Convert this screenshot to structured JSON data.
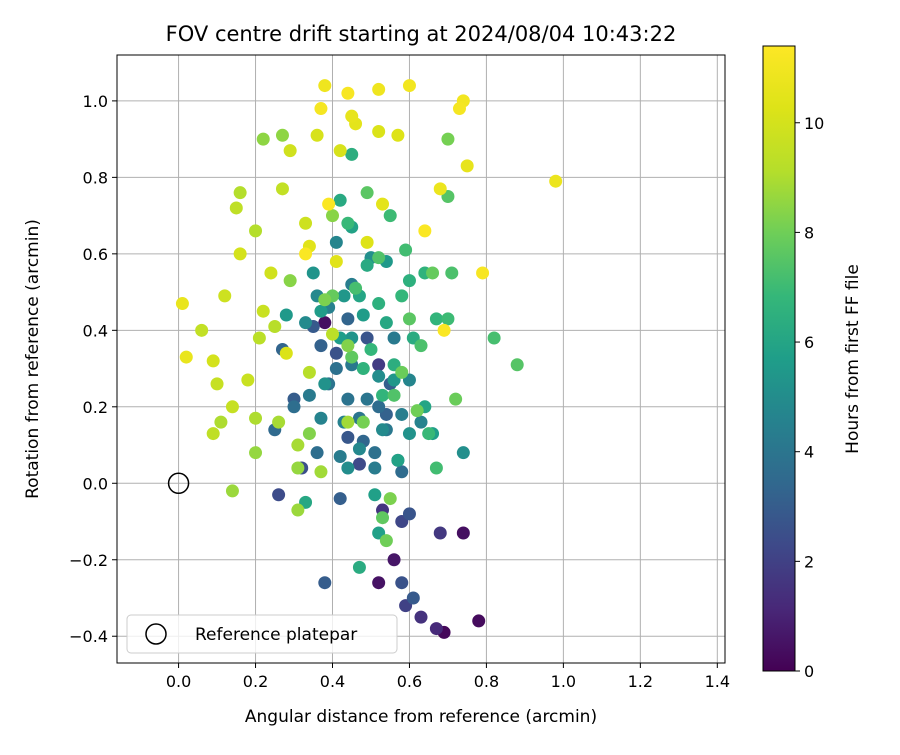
{
  "chart_data": {
    "type": "scatter",
    "title": "FOV centre drift starting at 2024/08/04 10:43:22",
    "xlabel": "Angular distance from reference (arcmin)",
    "ylabel": "Rotation from reference (arcmin)",
    "xlim": [
      -0.16,
      1.42
    ],
    "ylim": [
      -0.47,
      1.12
    ],
    "x_ticks": [
      "0.0",
      "0.2",
      "0.4",
      "0.6",
      "0.8",
      "1.0",
      "1.2",
      "1.4"
    ],
    "y_ticks": [
      "−0.4",
      "−0.2",
      "0.0",
      "0.2",
      "0.4",
      "0.6",
      "0.8",
      "1.0"
    ],
    "grid": true,
    "colormap": "viridis",
    "colorbar": {
      "label": "Hours from first FF file",
      "range": [
        0,
        11.4
      ],
      "ticks": [
        "0",
        "2",
        "4",
        "6",
        "8",
        "10"
      ]
    },
    "legend": {
      "placement": "lower left",
      "entries": [
        "Reference platepar"
      ]
    },
    "reference_point": {
      "x": 0.0,
      "y": 0.0
    },
    "points": [
      {
        "x": 0.69,
        "y": -0.39,
        "h": 0.2
      },
      {
        "x": 0.78,
        "y": -0.36,
        "h": 0.3
      },
      {
        "x": 0.74,
        "y": -0.13,
        "h": 0.4
      },
      {
        "x": 0.38,
        "y": 0.42,
        "h": 0.4
      },
      {
        "x": 0.52,
        "y": -0.26,
        "h": 0.5
      },
      {
        "x": 0.56,
        "y": -0.2,
        "h": 0.6
      },
      {
        "x": 0.67,
        "y": -0.38,
        "h": 1.2
      },
      {
        "x": 0.63,
        "y": -0.35,
        "h": 1.5
      },
      {
        "x": 0.53,
        "y": -0.07,
        "h": 1.6
      },
      {
        "x": 0.68,
        "y": -0.13,
        "h": 1.7
      },
      {
        "x": 0.52,
        "y": 0.31,
        "h": 1.8
      },
      {
        "x": 0.59,
        "y": -0.32,
        "h": 2.0
      },
      {
        "x": 0.58,
        "y": -0.1,
        "h": 2.2
      },
      {
        "x": 0.47,
        "y": 0.05,
        "h": 2.3
      },
      {
        "x": 0.26,
        "y": -0.03,
        "h": 2.4
      },
      {
        "x": 0.32,
        "y": 0.04,
        "h": 2.5
      },
      {
        "x": 0.58,
        "y": -0.26,
        "h": 2.6
      },
      {
        "x": 0.41,
        "y": 0.34,
        "h": 2.6
      },
      {
        "x": 0.49,
        "y": 0.38,
        "h": 2.7
      },
      {
        "x": 0.6,
        "y": -0.08,
        "h": 2.7
      },
      {
        "x": 0.44,
        "y": 0.12,
        "h": 2.8
      },
      {
        "x": 0.61,
        "y": -0.3,
        "h": 2.9
      },
      {
        "x": 0.35,
        "y": 0.41,
        "h": 2.9
      },
      {
        "x": 0.38,
        "y": -0.26,
        "h": 3.0
      },
      {
        "x": 0.3,
        "y": 0.22,
        "h": 3.0
      },
      {
        "x": 0.42,
        "y": -0.04,
        "h": 3.1
      },
      {
        "x": 0.55,
        "y": 0.26,
        "h": 3.1
      },
      {
        "x": 0.37,
        "y": 0.36,
        "h": 3.2
      },
      {
        "x": 0.54,
        "y": 0.18,
        "h": 3.2
      },
      {
        "x": 0.44,
        "y": 0.43,
        "h": 3.3
      },
      {
        "x": 0.27,
        "y": 0.35,
        "h": 3.3
      },
      {
        "x": 0.48,
        "y": 0.11,
        "h": 3.4
      },
      {
        "x": 0.25,
        "y": 0.14,
        "h": 3.5
      },
      {
        "x": 0.57,
        "y": 0.06,
        "h": 3.5
      },
      {
        "x": 0.52,
        "y": 0.2,
        "h": 3.6
      },
      {
        "x": 0.58,
        "y": 0.03,
        "h": 3.6
      },
      {
        "x": 0.3,
        "y": 0.2,
        "h": 3.7
      },
      {
        "x": 0.36,
        "y": 0.08,
        "h": 3.7
      },
      {
        "x": 0.41,
        "y": 0.3,
        "h": 3.8
      },
      {
        "x": 0.51,
        "y": 0.08,
        "h": 3.8
      },
      {
        "x": 0.44,
        "y": 0.22,
        "h": 3.9
      },
      {
        "x": 0.39,
        "y": 0.26,
        "h": 3.9
      },
      {
        "x": 0.47,
        "y": 0.17,
        "h": 4.0
      },
      {
        "x": 0.49,
        "y": 0.22,
        "h": 4.0
      },
      {
        "x": 0.54,
        "y": 0.14,
        "h": 4.1
      },
      {
        "x": 0.45,
        "y": 0.31,
        "h": 4.1
      },
      {
        "x": 0.56,
        "y": 0.38,
        "h": 4.2
      },
      {
        "x": 0.34,
        "y": 0.23,
        "h": 4.2
      },
      {
        "x": 0.42,
        "y": 0.07,
        "h": 4.3
      },
      {
        "x": 0.51,
        "y": 0.04,
        "h": 4.3
      },
      {
        "x": 0.58,
        "y": 0.18,
        "h": 4.4
      },
      {
        "x": 0.45,
        "y": 0.52,
        "h": 4.4
      },
      {
        "x": 0.39,
        "y": 0.46,
        "h": 4.5
      },
      {
        "x": 0.43,
        "y": 0.16,
        "h": 4.5
      },
      {
        "x": 0.63,
        "y": 0.16,
        "h": 4.6
      },
      {
        "x": 0.37,
        "y": 0.17,
        "h": 4.6
      },
      {
        "x": 0.6,
        "y": 0.27,
        "h": 4.7
      },
      {
        "x": 0.41,
        "y": 0.63,
        "h": 4.7
      },
      {
        "x": 0.47,
        "y": 0.09,
        "h": 4.8
      },
      {
        "x": 0.36,
        "y": 0.49,
        "h": 4.8
      },
      {
        "x": 0.53,
        "y": 0.14,
        "h": 4.9
      },
      {
        "x": 0.33,
        "y": 0.42,
        "h": 4.9
      },
      {
        "x": 0.44,
        "y": 0.04,
        "h": 5.0
      },
      {
        "x": 0.52,
        "y": 0.28,
        "h": 5.0
      },
      {
        "x": 0.74,
        "y": 0.08,
        "h": 5.1
      },
      {
        "x": 0.5,
        "y": 0.59,
        "h": 5.1
      },
      {
        "x": 0.38,
        "y": 0.26,
        "h": 5.2
      },
      {
        "x": 0.6,
        "y": 0.13,
        "h": 5.2
      },
      {
        "x": 0.35,
        "y": 0.55,
        "h": 5.3
      },
      {
        "x": 0.45,
        "y": 0.38,
        "h": 5.3
      },
      {
        "x": 0.56,
        "y": 0.27,
        "h": 5.4
      },
      {
        "x": 0.43,
        "y": 0.49,
        "h": 5.4
      },
      {
        "x": 0.28,
        "y": 0.44,
        "h": 5.5
      },
      {
        "x": 0.54,
        "y": 0.58,
        "h": 5.5
      },
      {
        "x": 0.37,
        "y": 0.45,
        "h": 5.6
      },
      {
        "x": 0.48,
        "y": 0.44,
        "h": 5.6
      },
      {
        "x": 0.66,
        "y": 0.13,
        "h": 5.7
      },
      {
        "x": 0.42,
        "y": 0.38,
        "h": 5.7
      },
      {
        "x": 0.51,
        "y": -0.03,
        "h": 5.8
      },
      {
        "x": 0.52,
        "y": -0.13,
        "h": 5.8
      },
      {
        "x": 0.57,
        "y": 0.06,
        "h": 5.9
      },
      {
        "x": 0.45,
        "y": 0.67,
        "h": 5.9
      },
      {
        "x": 0.47,
        "y": 0.49,
        "h": 6.0
      },
      {
        "x": 0.64,
        "y": 0.2,
        "h": 6.0
      },
      {
        "x": 0.54,
        "y": 0.42,
        "h": 6.1
      },
      {
        "x": 0.33,
        "y": -0.05,
        "h": 6.1
      },
      {
        "x": 0.49,
        "y": 0.57,
        "h": 6.2
      },
      {
        "x": 0.42,
        "y": 0.74,
        "h": 6.2
      },
      {
        "x": 0.61,
        "y": 0.38,
        "h": 6.3
      },
      {
        "x": 0.47,
        "y": -0.22,
        "h": 6.3
      },
      {
        "x": 0.56,
        "y": 0.31,
        "h": 6.4
      },
      {
        "x": 0.45,
        "y": 0.86,
        "h": 6.4
      },
      {
        "x": 0.52,
        "y": 0.47,
        "h": 6.5
      },
      {
        "x": 0.6,
        "y": 0.53,
        "h": 6.5
      },
      {
        "x": 0.48,
        "y": 0.3,
        "h": 6.6
      },
      {
        "x": 0.64,
        "y": 0.55,
        "h": 6.6
      },
      {
        "x": 0.53,
        "y": 0.23,
        "h": 6.7
      },
      {
        "x": 0.67,
        "y": 0.43,
        "h": 6.7
      },
      {
        "x": 0.5,
        "y": 0.35,
        "h": 6.8
      },
      {
        "x": 0.58,
        "y": 0.49,
        "h": 6.8
      },
      {
        "x": 0.65,
        "y": 0.13,
        "h": 6.9
      },
      {
        "x": 0.44,
        "y": 0.68,
        "h": 6.9
      },
      {
        "x": 0.55,
        "y": 0.7,
        "h": 7.0
      },
      {
        "x": 0.7,
        "y": 0.43,
        "h": 7.0
      },
      {
        "x": 0.59,
        "y": 0.61,
        "h": 7.1
      },
      {
        "x": 0.67,
        "y": 0.04,
        "h": 7.1
      },
      {
        "x": 0.82,
        "y": 0.38,
        "h": 7.2
      },
      {
        "x": 0.46,
        "y": 0.51,
        "h": 7.2
      },
      {
        "x": 0.63,
        "y": 0.36,
        "h": 7.3
      },
      {
        "x": 0.71,
        "y": 0.55,
        "h": 7.3
      },
      {
        "x": 0.52,
        "y": 0.59,
        "h": 7.4
      },
      {
        "x": 0.56,
        "y": 0.23,
        "h": 7.4
      },
      {
        "x": 0.88,
        "y": 0.31,
        "h": 7.5
      },
      {
        "x": 0.7,
        "y": 0.75,
        "h": 7.5
      },
      {
        "x": 0.6,
        "y": 0.43,
        "h": 7.6
      },
      {
        "x": 0.49,
        "y": 0.76,
        "h": 7.6
      },
      {
        "x": 0.53,
        "y": -0.09,
        "h": 7.7
      },
      {
        "x": 0.45,
        "y": 0.33,
        "h": 7.7
      },
      {
        "x": 0.66,
        "y": 0.55,
        "h": 7.8
      },
      {
        "x": 0.4,
        "y": 0.49,
        "h": 7.8
      },
      {
        "x": 0.58,
        "y": 0.29,
        "h": 7.9
      },
      {
        "x": 0.72,
        "y": 0.22,
        "h": 7.9
      },
      {
        "x": 0.54,
        "y": -0.15,
        "h": 8.0
      },
      {
        "x": 0.62,
        "y": 0.19,
        "h": 8.0
      },
      {
        "x": 0.7,
        "y": 0.9,
        "h": 8.1
      },
      {
        "x": 0.48,
        "y": 0.16,
        "h": 8.1
      },
      {
        "x": 0.38,
        "y": 0.48,
        "h": 8.2
      },
      {
        "x": 0.55,
        "y": -0.04,
        "h": 8.2
      },
      {
        "x": 0.44,
        "y": 0.36,
        "h": 8.3
      },
      {
        "x": 0.34,
        "y": 0.13,
        "h": 8.3
      },
      {
        "x": 0.29,
        "y": 0.53,
        "h": 8.4
      },
      {
        "x": 0.4,
        "y": 0.7,
        "h": 8.4
      },
      {
        "x": 0.22,
        "y": 0.9,
        "h": 8.5
      },
      {
        "x": 0.27,
        "y": 0.91,
        "h": 8.5
      },
      {
        "x": 0.31,
        "y": 0.04,
        "h": 8.6
      },
      {
        "x": 0.2,
        "y": 0.08,
        "h": 8.6
      },
      {
        "x": 0.14,
        "y": -0.02,
        "h": 8.7
      },
      {
        "x": 0.31,
        "y": -0.07,
        "h": 8.7
      },
      {
        "x": 0.37,
        "y": 0.03,
        "h": 8.8
      },
      {
        "x": 0.44,
        "y": 0.16,
        "h": 8.8
      },
      {
        "x": 0.31,
        "y": 0.1,
        "h": 8.9
      },
      {
        "x": 0.26,
        "y": 0.16,
        "h": 8.9
      },
      {
        "x": 0.2,
        "y": 0.17,
        "h": 9.0
      },
      {
        "x": 0.11,
        "y": 0.16,
        "h": 9.0
      },
      {
        "x": 0.16,
        "y": 0.76,
        "h": 9.1
      },
      {
        "x": 0.2,
        "y": 0.66,
        "h": 9.1
      },
      {
        "x": 0.25,
        "y": 0.41,
        "h": 9.2
      },
      {
        "x": 0.34,
        "y": 0.29,
        "h": 9.2
      },
      {
        "x": 0.4,
        "y": 0.39,
        "h": 9.3
      },
      {
        "x": 0.21,
        "y": 0.38,
        "h": 9.3
      },
      {
        "x": 0.09,
        "y": 0.13,
        "h": 9.4
      },
      {
        "x": 0.15,
        "y": 0.72,
        "h": 9.4
      },
      {
        "x": 0.27,
        "y": 0.77,
        "h": 9.5
      },
      {
        "x": 0.06,
        "y": 0.4,
        "h": 9.5
      },
      {
        "x": 0.1,
        "y": 0.26,
        "h": 9.6
      },
      {
        "x": 0.14,
        "y": 0.2,
        "h": 9.6
      },
      {
        "x": 0.22,
        "y": 0.45,
        "h": 9.7
      },
      {
        "x": 0.18,
        "y": 0.27,
        "h": 9.7
      },
      {
        "x": 0.33,
        "y": 0.68,
        "h": 9.8
      },
      {
        "x": 0.12,
        "y": 0.49,
        "h": 9.8
      },
      {
        "x": 0.29,
        "y": 0.87,
        "h": 9.9
      },
      {
        "x": 0.24,
        "y": 0.55,
        "h": 9.9
      },
      {
        "x": 0.16,
        "y": 0.6,
        "h": 10.0
      },
      {
        "x": 0.09,
        "y": 0.32,
        "h": 10.0
      },
      {
        "x": 0.42,
        "y": 0.87,
        "h": 10.1
      },
      {
        "x": 0.36,
        "y": 0.91,
        "h": 10.1
      },
      {
        "x": 0.52,
        "y": 0.92,
        "h": 10.2
      },
      {
        "x": 0.28,
        "y": 0.34,
        "h": 10.2
      },
      {
        "x": 0.49,
        "y": 0.63,
        "h": 10.3
      },
      {
        "x": 0.57,
        "y": 0.91,
        "h": 10.3
      },
      {
        "x": 0.34,
        "y": 0.62,
        "h": 10.4
      },
      {
        "x": 0.41,
        "y": 0.58,
        "h": 10.4
      },
      {
        "x": 0.46,
        "y": 0.94,
        "h": 10.5
      },
      {
        "x": 0.53,
        "y": 0.73,
        "h": 10.5
      },
      {
        "x": 0.75,
        "y": 0.83,
        "h": 10.6
      },
      {
        "x": 0.45,
        "y": 0.96,
        "h": 10.6
      },
      {
        "x": 0.02,
        "y": 0.33,
        "h": 10.7
      },
      {
        "x": 0.01,
        "y": 0.47,
        "h": 10.7
      },
      {
        "x": 0.68,
        "y": 0.77,
        "h": 10.8
      },
      {
        "x": 0.98,
        "y": 0.79,
        "h": 10.8
      },
      {
        "x": 0.38,
        "y": 1.04,
        "h": 10.9
      },
      {
        "x": 0.52,
        "y": 1.03,
        "h": 10.9
      },
      {
        "x": 0.6,
        "y": 1.04,
        "h": 11.0
      },
      {
        "x": 0.74,
        "y": 1.0,
        "h": 11.0
      },
      {
        "x": 0.73,
        "y": 0.98,
        "h": 11.1
      },
      {
        "x": 0.37,
        "y": 0.98,
        "h": 11.1
      },
      {
        "x": 0.44,
        "y": 1.02,
        "h": 11.2
      },
      {
        "x": 0.79,
        "y": 0.55,
        "h": 11.2
      },
      {
        "x": 0.69,
        "y": 0.4,
        "h": 11.3
      },
      {
        "x": 0.64,
        "y": 0.66,
        "h": 11.3
      },
      {
        "x": 0.33,
        "y": 0.6,
        "h": 11.3
      },
      {
        "x": 0.39,
        "y": 0.73,
        "h": 11.3
      }
    ]
  }
}
